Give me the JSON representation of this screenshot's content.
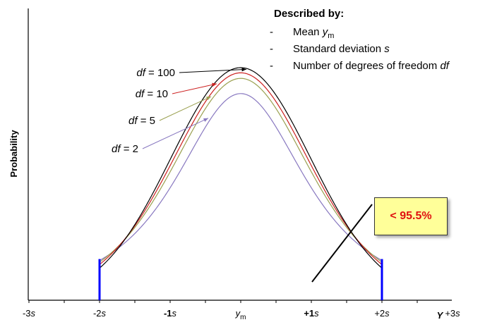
{
  "chart_data": {
    "type": "line",
    "ylabel": "Probability",
    "xlabel": "Y",
    "x_ticks": [
      {
        "pre": "-3",
        "var": "s",
        "sub": "",
        "bold": false,
        "x": -3
      },
      {
        "pre": "-2",
        "var": "s",
        "sub": "",
        "bold": false,
        "x": -2
      },
      {
        "pre": "-1",
        "var": "s",
        "sub": "",
        "bold": true,
        "x": -1
      },
      {
        "pre": "",
        "var": "y",
        "sub": "m",
        "bold": false,
        "x": 0
      },
      {
        "pre": "+1",
        "var": "s",
        "sub": "",
        "bold": true,
        "x": 1
      },
      {
        "pre": "+2",
        "var": "s",
        "sub": "",
        "bold": false,
        "x": 2
      },
      {
        "pre": "+3",
        "var": "s",
        "sub": "",
        "bold": false,
        "x": 3
      }
    ],
    "xlim": [
      -3,
      3
    ],
    "series": [
      {
        "name": "df = 100",
        "df": 100,
        "color": "#000000"
      },
      {
        "name": "df = 10",
        "df": 10,
        "color": "#cc2020"
      },
      {
        "name": "df = 5",
        "df": 5,
        "color": "#9aa050"
      },
      {
        "name": "df = 2",
        "df": 2,
        "color": "#8878c0"
      }
    ],
    "curve_labels": [
      {
        "prefix": "df",
        "text": " = 100",
        "df": 100
      },
      {
        "prefix": "df",
        "text": " = 10",
        "df": 10
      },
      {
        "prefix": "df",
        "text": " = 5",
        "df": 5
      },
      {
        "prefix": "df",
        "text": " = 2",
        "df": 2
      }
    ],
    "boundaries": [
      -2,
      2
    ],
    "boundary_color": "#0000ff",
    "description": {
      "title": "Described by:",
      "items": [
        {
          "dash": "-",
          "text": "Mean ",
          "var": "y",
          "sub": "m"
        },
        {
          "dash": "-",
          "text": "Standard deviation ",
          "var": "s",
          "sub": ""
        },
        {
          "dash": "-",
          "text": "Number of degrees of freedom ",
          "var": "df",
          "sub": ""
        }
      ]
    },
    "callout": {
      "text": "< 95.5%",
      "text_color": "#e01010",
      "background": "#ffff99"
    }
  }
}
